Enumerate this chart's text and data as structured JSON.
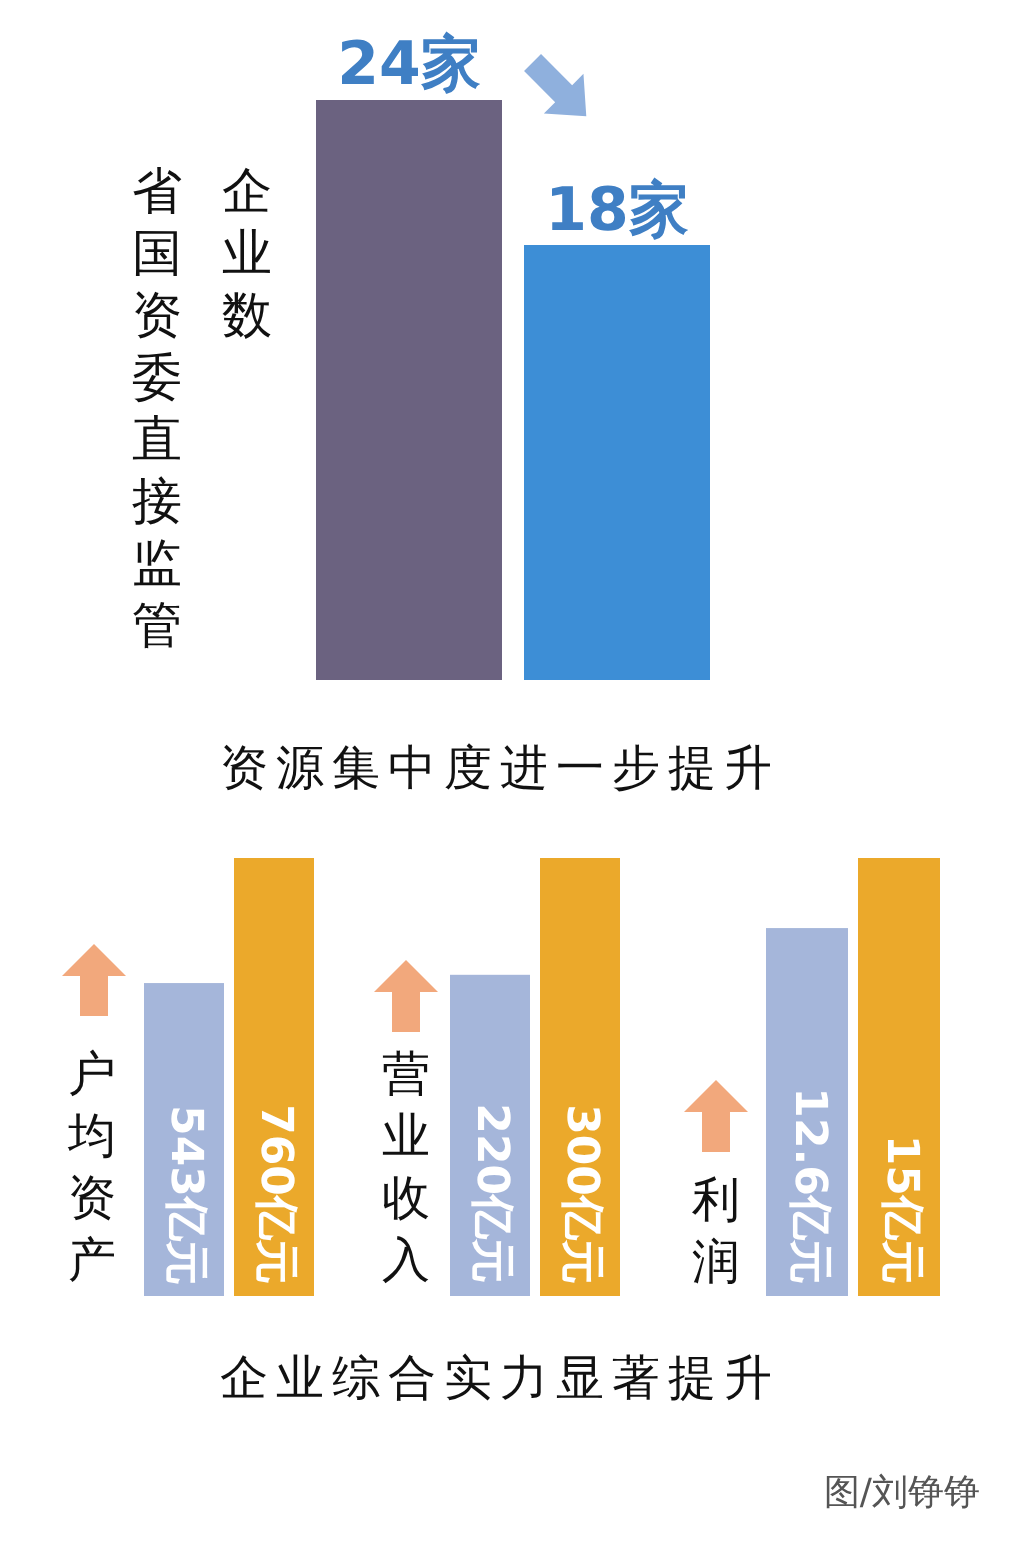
{
  "chart_data": [
    {
      "type": "bar",
      "title": "资源集中度进一步提升",
      "ylabel": "省国资委直接监管企业数",
      "categories": [
        null,
        null
      ],
      "values": [
        24,
        18
      ],
      "colors": [
        "#6b6280",
        "#3d8ed6"
      ],
      "value_labels": [
        "24家",
        "18家"
      ]
    },
    {
      "type": "bar",
      "ylabel": "户均资产",
      "categories": [
        null,
        null
      ],
      "values": [
        543,
        760
      ],
      "colors": [
        "#a5b6da",
        "#eba92b"
      ],
      "value_labels": [
        "543亿元",
        "760亿元"
      ]
    },
    {
      "type": "bar",
      "ylabel": "营业收入",
      "categories": [
        null,
        null
      ],
      "values": [
        220,
        300
      ],
      "colors": [
        "#a5b6da",
        "#eba92b"
      ],
      "value_labels": [
        "220亿元",
        "300亿元"
      ]
    },
    {
      "type": "bar",
      "ylabel": "利润",
      "categories": [
        null,
        null
      ],
      "values": [
        12.6,
        15
      ],
      "colors": [
        "#a5b6da",
        "#eba92b"
      ],
      "value_labels": [
        "12.6亿元",
        "15亿元"
      ]
    },
    {
      "type": "other",
      "title": "企业综合实力显著提升",
      "annotations": [
        "图/刘铮铮"
      ]
    }
  ]
}
